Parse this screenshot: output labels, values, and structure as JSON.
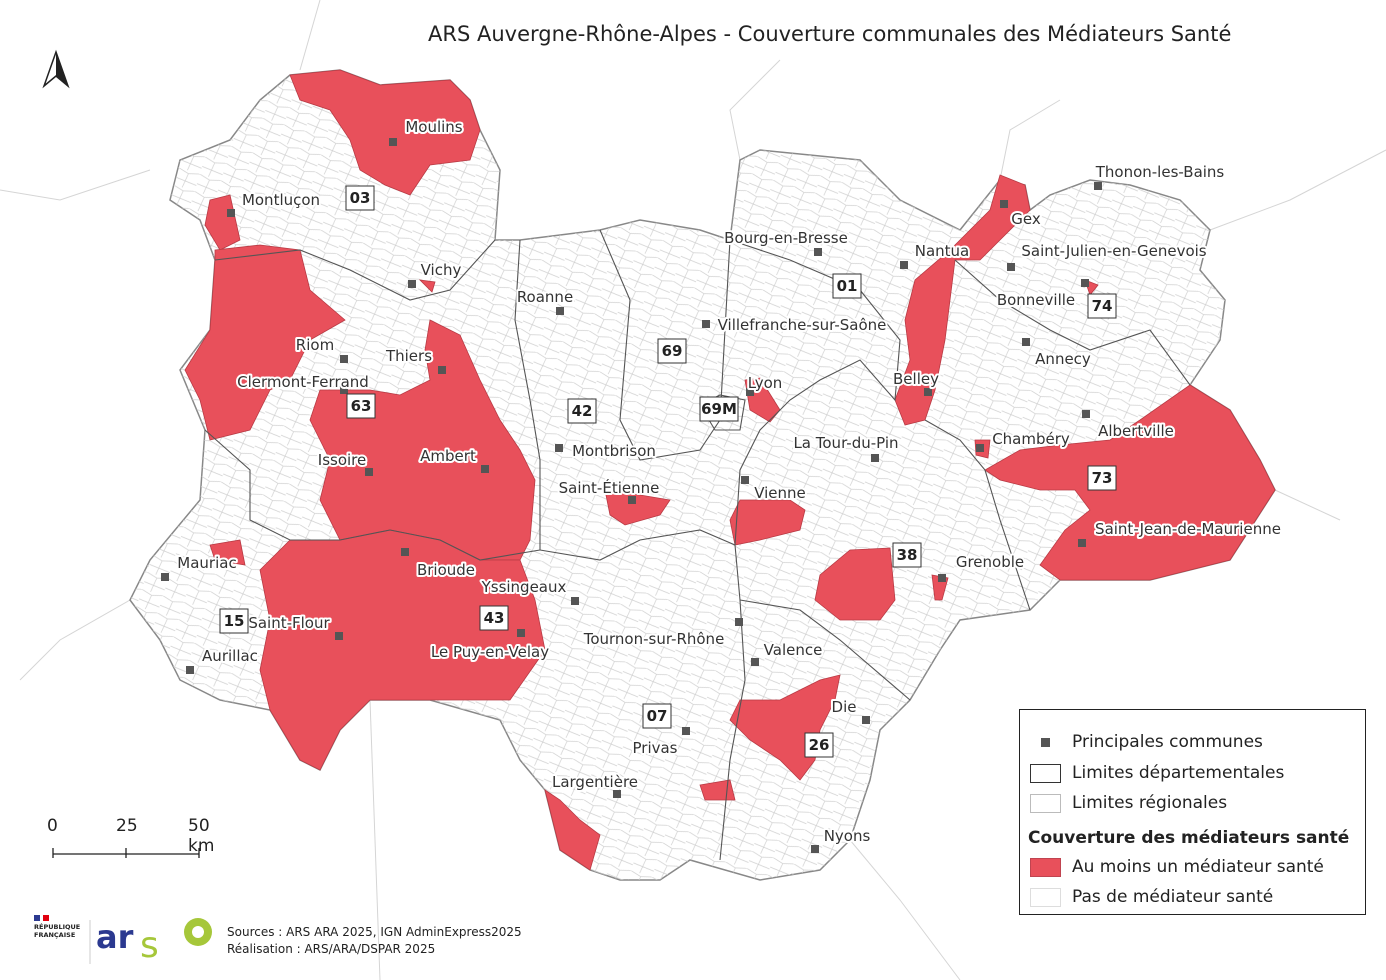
{
  "title": "ARS Auvergne-Rhône-Alpes - Couverture communales des Médiateurs Santé",
  "colors": {
    "covered": "#e8505b",
    "not_covered": "#ffffff",
    "commune_border": "#c8c8c8",
    "dept_border": "#555555",
    "city_marker": "#555555"
  },
  "north_arrow": {
    "icon": "north-arrow-icon"
  },
  "departments": [
    "03",
    "63",
    "15",
    "43",
    "42",
    "69",
    "69M",
    "01",
    "74",
    "73",
    "38",
    "26",
    "07"
  ],
  "cities": [
    "Moulins",
    "Montluçon",
    "Vichy",
    "Riom",
    "Thiers",
    "Clermont-Ferrand",
    "Issoire",
    "Ambert",
    "Mauriac",
    "Saint-Flour",
    "Aurillac",
    "Brioude",
    "Yssingeaux",
    "Le Puy-en-Velay",
    "Roanne",
    "Montbrison",
    "Saint-Étienne",
    "Tournon-sur-Rhône",
    "Valence",
    "Privas",
    "Largentière",
    "Die",
    "Nyons",
    "Bourg-en-Bresse",
    "Villefranche-sur-Saône",
    "Lyon",
    "Vienne",
    "La Tour-du-Pin",
    "Nantua",
    "Gex",
    "Thonon-les-Bains",
    "Saint-Julien-en-Genevois",
    "Bonneville",
    "Annecy",
    "Belley",
    "Chambéry",
    "Albertville",
    "Saint-Jean-de-Maurienne",
    "Grenoble"
  ],
  "legend": {
    "items": [
      "Principales communes",
      "Limites départementales",
      "Limites régionales"
    ],
    "section_title": "Couverture des médiateurs santé",
    "classes": [
      "Au moins un médiateur santé",
      "Pas de médiateur santé"
    ]
  },
  "scale_bar": {
    "ticks": [
      "0",
      "25",
      "50 km"
    ]
  },
  "sources": {
    "line1": "Sources : ARS ARA 2025, IGN AdminExpress2025",
    "line2": "Réalisation : ARS/ARA/DSPAR 2025"
  },
  "logos": {
    "republique": "RÉPUBLIQUE FRANÇAISE",
    "ars": "ars",
    "third": "ellofoale"
  }
}
